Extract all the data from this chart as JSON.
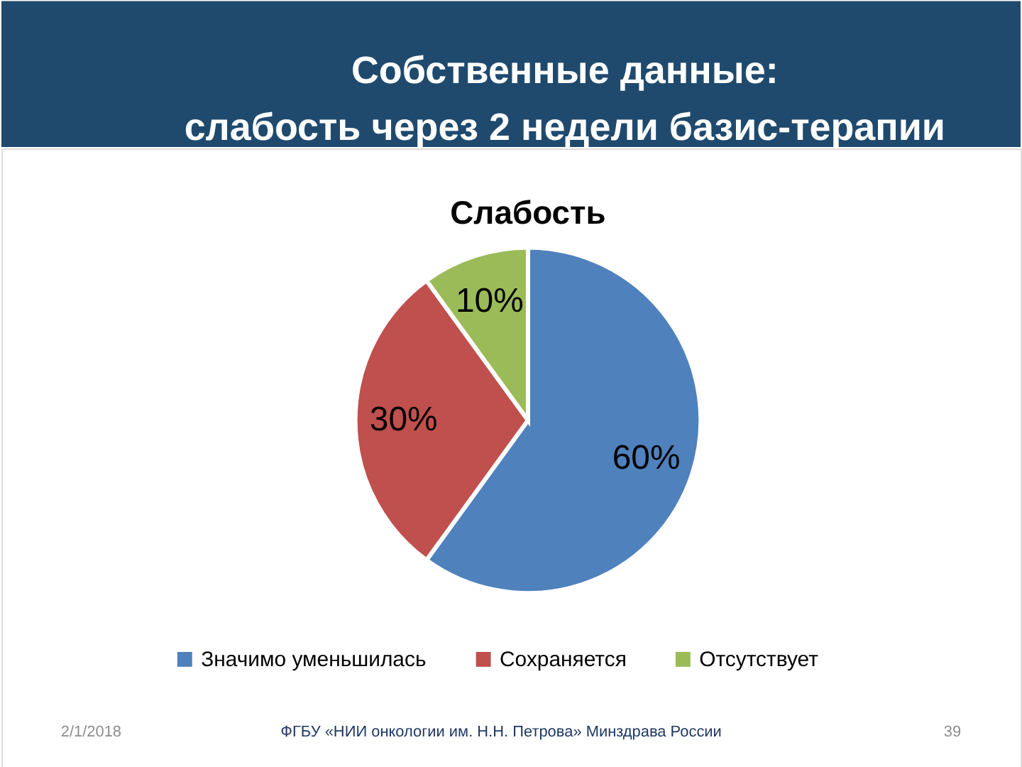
{
  "chart_data": {
    "type": "pie",
    "title": "Собственные данные:\nслабость через 2 недели базис-терапии",
    "subtitle": "Слабость",
    "categories": [
      "Значимо уменьшилась",
      "Сохраняется",
      "Отсутствует"
    ],
    "values": [
      60,
      30,
      10
    ],
    "colors": [
      "#4f81bd",
      "#c0504d",
      "#9bbb59"
    ],
    "value_labels": [
      "60%",
      "30%",
      "10%"
    ],
    "legend": "bottom",
    "annotations": [
      "2/1/2018",
      "ФГБУ «НИИ онкологии им. Н.Н. Петрова» Минздрава России",
      "39"
    ]
  }
}
